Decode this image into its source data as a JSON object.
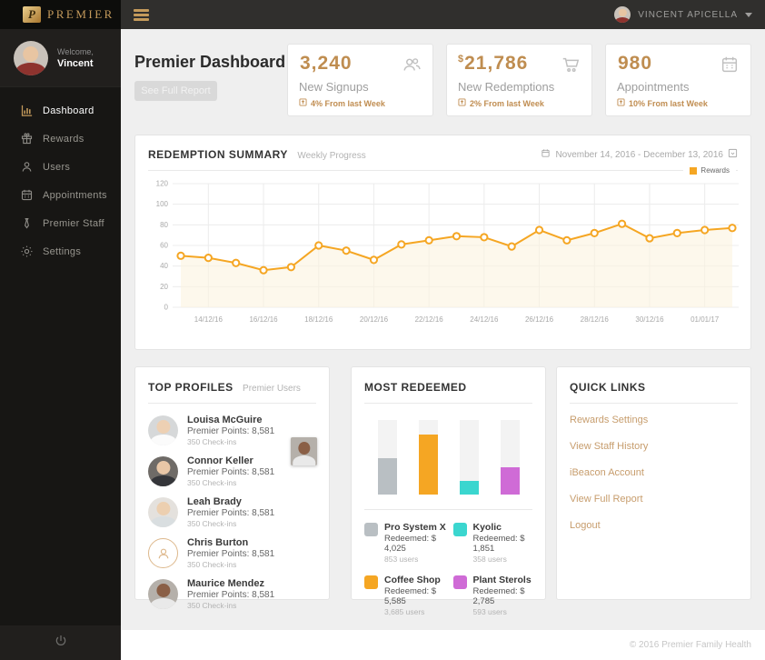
{
  "sidebar": {
    "logo_mark": "P",
    "logo_text": "PREMIER",
    "welcome_label": "Welcome,",
    "user_first_name": "Vincent",
    "nav": [
      {
        "label": "Dashboard",
        "icon": "bar-chart-icon",
        "active": true
      },
      {
        "label": "Rewards",
        "icon": "gift-icon",
        "active": false
      },
      {
        "label": "Users",
        "icon": "user-icon",
        "active": false
      },
      {
        "label": "Appointments",
        "icon": "calendar-icon",
        "active": false
      },
      {
        "label": "Premier Staff",
        "icon": "tie-icon",
        "active": false
      },
      {
        "label": "Settings",
        "icon": "gear-icon",
        "active": false
      }
    ]
  },
  "topbar": {
    "user_name": "VINCENT APICELLA"
  },
  "header": {
    "title": "Premier Dashboard",
    "see_full_report_label": "See Full Report"
  },
  "stat_cards": [
    {
      "prefix": "",
      "value": "3,240",
      "label": "New Signups",
      "delta": "4% From last Week",
      "icon": "users-icon"
    },
    {
      "prefix": "$",
      "value": "21,786",
      "label": "New Redemptions",
      "delta": "2% From last Week",
      "icon": "cart-icon"
    },
    {
      "prefix": "",
      "value": "980",
      "label": "Appointments",
      "delta": "10% From last Week",
      "icon": "calendar-icon"
    }
  ],
  "redemption_summary": {
    "title": "REDEMPTION SUMMARY",
    "subtitle": "Weekly Progress",
    "date_range": "November 14, 2016 - December 13, 2016",
    "legend": "Rewards"
  },
  "chart_data": [
    {
      "type": "line",
      "title": "REDEMPTION SUMMARY",
      "subtitle": "Weekly Progress",
      "series": [
        {
          "name": "Rewards",
          "values": [
            50,
            48,
            43,
            36,
            39,
            60,
            55,
            46,
            61,
            65,
            69,
            68,
            59,
            75,
            65,
            72,
            81,
            67,
            72,
            75,
            77
          ]
        }
      ],
      "x_tick_labels": [
        "14/12/16",
        "16/12/16",
        "18/12/16",
        "20/12/16",
        "22/12/16",
        "24/12/16",
        "26/12/16",
        "28/12/16",
        "30/12/16",
        "01/01/17"
      ],
      "y_ticks": [
        0,
        20,
        40,
        60,
        80,
        100,
        120
      ],
      "ylim": [
        0,
        120
      ],
      "line_color": "#f5a623",
      "area_color": "#fcf3e0",
      "grid": true,
      "legend_position": "top-right"
    },
    {
      "type": "bar",
      "title": "MOST REDEEMED",
      "categories": [
        "Pro System X",
        "Coffee Shop",
        "Kyolic",
        "Plant Sterols"
      ],
      "values": [
        4025,
        5585,
        1851,
        2785
      ],
      "ylabel": "Redeemed ($)",
      "bar_colors": [
        "#b9bfc3",
        "#f5a623",
        "#3bd6cf",
        "#cf6bd6"
      ],
      "height_pct": [
        49,
        80,
        18,
        36
      ]
    }
  ],
  "top_profiles": {
    "title": "TOP PROFILES",
    "subtitle": "Premier Users",
    "users": [
      {
        "name": "Louisa McGuire",
        "points": "Premier Points: 8,581",
        "checkins": "350 Check-ins"
      },
      {
        "name": "Connor Keller",
        "points": "Premier Points: 8,581",
        "checkins": "350 Check-ins"
      },
      {
        "name": "Leah Brady",
        "points": "Premier Points: 8,581",
        "checkins": "350 Check-ins"
      },
      {
        "name": "Chris Burton",
        "points": "Premier Points: 8,581",
        "checkins": "350 Check-ins"
      },
      {
        "name": "Maurice Mendez",
        "points": "Premier Points: 8,581",
        "checkins": "350 Check-ins"
      }
    ]
  },
  "most_redeemed": {
    "title": "MOST REDEEMED",
    "items": [
      {
        "name": "Pro System X",
        "redeemed": "Redeemed: $ 4,025",
        "users": "853 users",
        "color": "#b9bfc3"
      },
      {
        "name": "Coffee Shop",
        "redeemed": "Redeemed: $ 5,585",
        "users": "3,685 users",
        "color": "#f5a623"
      },
      {
        "name": "Kyolic",
        "redeemed": "Redeemed: $ 1,851",
        "users": "358 users",
        "color": "#3bd6cf"
      },
      {
        "name": "Plant Sterols",
        "redeemed": "Redeemed: $ 2,785",
        "users": "593 users",
        "color": "#cf6bd6"
      }
    ]
  },
  "quick_links": {
    "title": "QUICK LINKS",
    "links": [
      "Rewards Settings",
      "View Staff History",
      "iBeacon Account",
      "View Full Report",
      "Logout"
    ]
  },
  "footer": {
    "copyright": "© 2016 Premier Family Health"
  },
  "colors": {
    "accent_gold": "#c49a5b",
    "stat_gold": "#bf8d50",
    "chart_orange": "#f5a623",
    "link_tan": "#c79d6d"
  }
}
